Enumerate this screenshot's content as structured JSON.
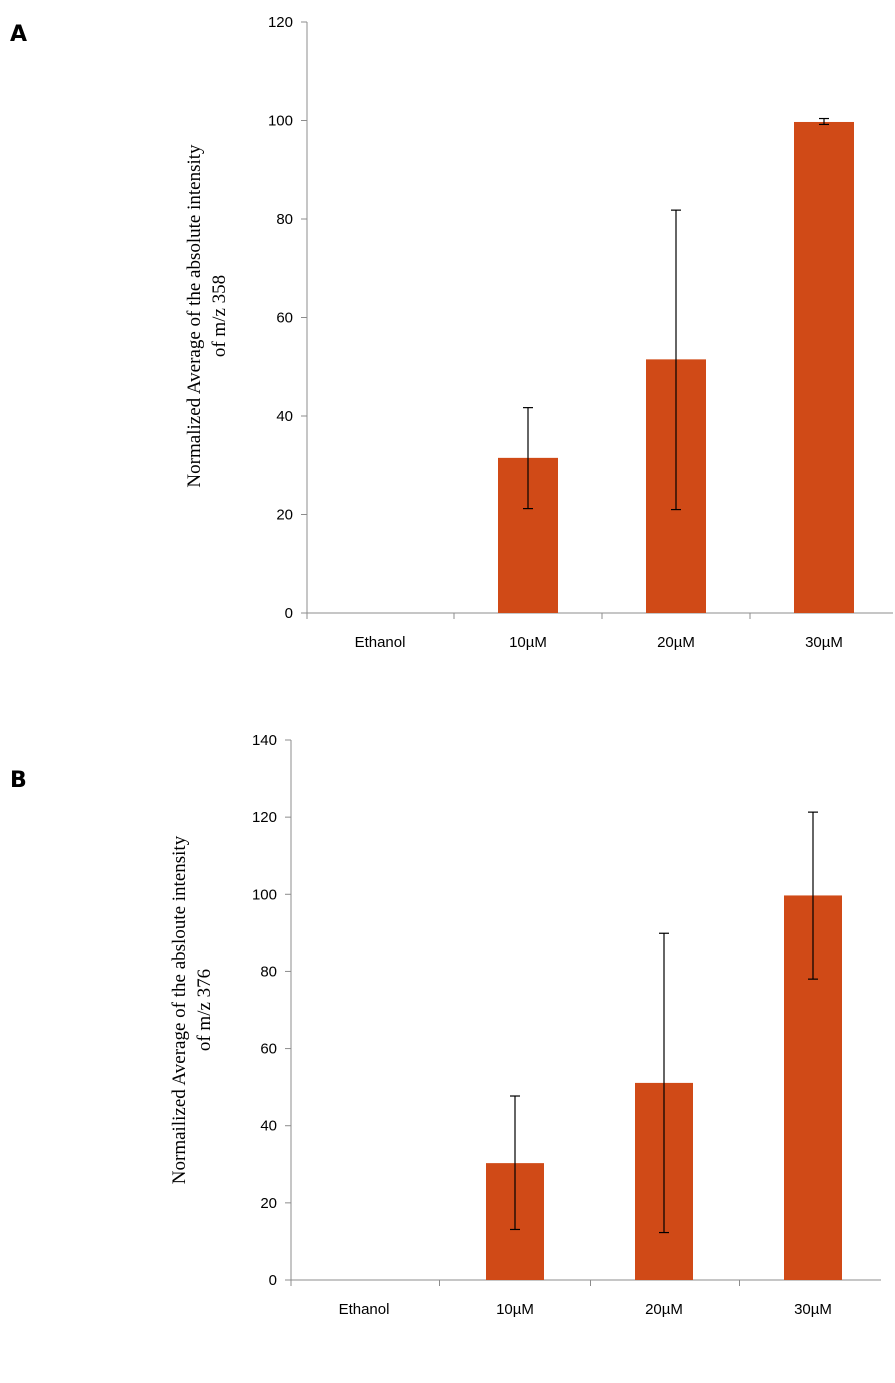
{
  "panels": {
    "a": {
      "letter": "A"
    },
    "b": {
      "letter": "B"
    }
  },
  "chart_data": [
    {
      "panel": "A",
      "type": "bar",
      "categories": [
        "Ethanol",
        "10µM",
        "20µM",
        "30µM"
      ],
      "values": [
        0,
        31.5,
        51.5,
        99.7
      ],
      "error_low": [
        0,
        21.2,
        21.0,
        99.2
      ],
      "error_high": [
        0,
        41.7,
        81.8,
        100.4
      ],
      "ylabel_lines": [
        "Normalized Average of the absolute intensity",
        "of m/z 358"
      ],
      "ylim": [
        0,
        120
      ],
      "yticks": [
        0,
        20,
        40,
        60,
        80,
        100,
        120
      ],
      "bar_color": "#d04a17",
      "grid": false
    },
    {
      "panel": "B",
      "type": "bar",
      "categories": [
        "Ethanol",
        "10µM",
        "20µM",
        "30µM"
      ],
      "values": [
        0,
        30.3,
        51.1,
        99.7
      ],
      "error_low": [
        0,
        13.1,
        12.3,
        78.0
      ],
      "error_high": [
        0,
        47.7,
        89.9,
        121.3
      ],
      "ylabel_lines": [
        "Normailized Average of the absloute intensity",
        "of m/z 376"
      ],
      "ylim": [
        0,
        140
      ],
      "yticks": [
        0,
        20,
        40,
        60,
        80,
        100,
        120,
        140
      ],
      "bar_color": "#d04a17",
      "grid": false
    }
  ]
}
